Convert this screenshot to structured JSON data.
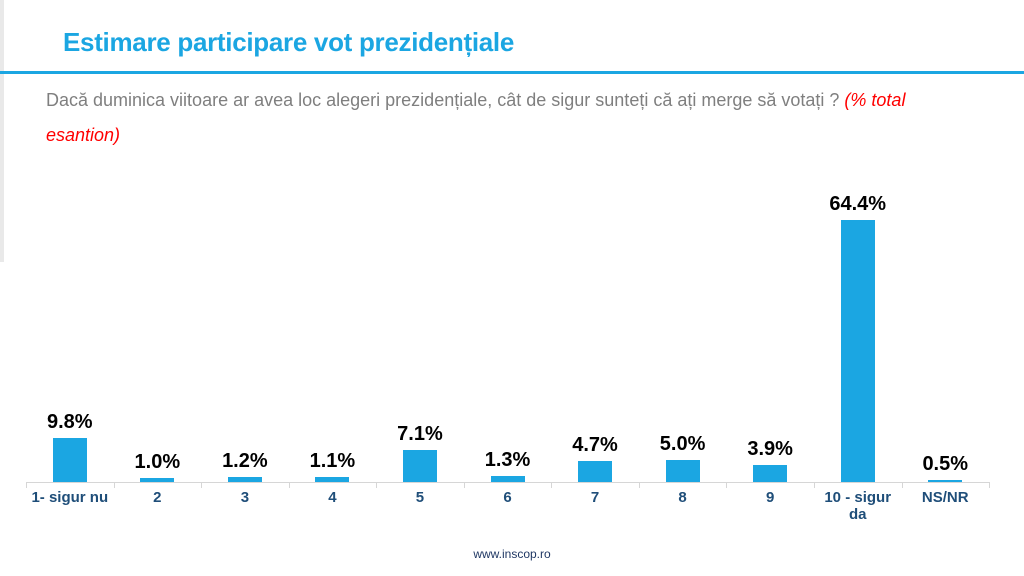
{
  "slide": {
    "title": "Estimare participare vot prezidențiale",
    "subtitle_question": "Dacă duminica viitoare ar avea loc alegeri prezidențiale, cât de sigur sunteți că ați merge să votați ? ",
    "subtitle_note_line1": "(% total",
    "subtitle_note_line2": "esantion)",
    "footer": "www.inscop.ro"
  },
  "colors": {
    "accent": "#1ba6e2",
    "bar": "#1ba6e2",
    "category_label": "#1f4e79",
    "value_label": "#000000",
    "subtitle_gray": "#7f7f7f",
    "note_red": "#ff0000",
    "axis": "#d6d6d6",
    "footer_navy": "#203864"
  },
  "chart_data": {
    "type": "bar",
    "title": "Estimare participare vot prezidențiale",
    "subtitle": "Dacă duminica viitoare ar avea loc alegeri prezidențiale, cât de sigur sunteți că ați merge să votați ? (% total esantion)",
    "categories": [
      "1- sigur nu",
      "2",
      "3",
      "4",
      "5",
      "6",
      "7",
      "8",
      "9",
      "10 - sigur da",
      "NS/NR"
    ],
    "values": [
      9.8,
      1.0,
      1.2,
      1.1,
      7.1,
      1.3,
      4.7,
      5.0,
      3.9,
      64.4,
      0.5
    ],
    "value_labels": [
      "9.8%",
      "1.0%",
      "1.2%",
      "1.1%",
      "7.1%",
      "1.3%",
      "4.7%",
      "5.0%",
      "3.9%",
      "64.4%",
      "0.5%"
    ],
    "xlabel": "",
    "ylabel": "",
    "ylim": [
      0,
      70
    ],
    "grid": false,
    "legend": false,
    "data_label_style": "bold black above each bar",
    "source": "www.inscop.ro"
  }
}
